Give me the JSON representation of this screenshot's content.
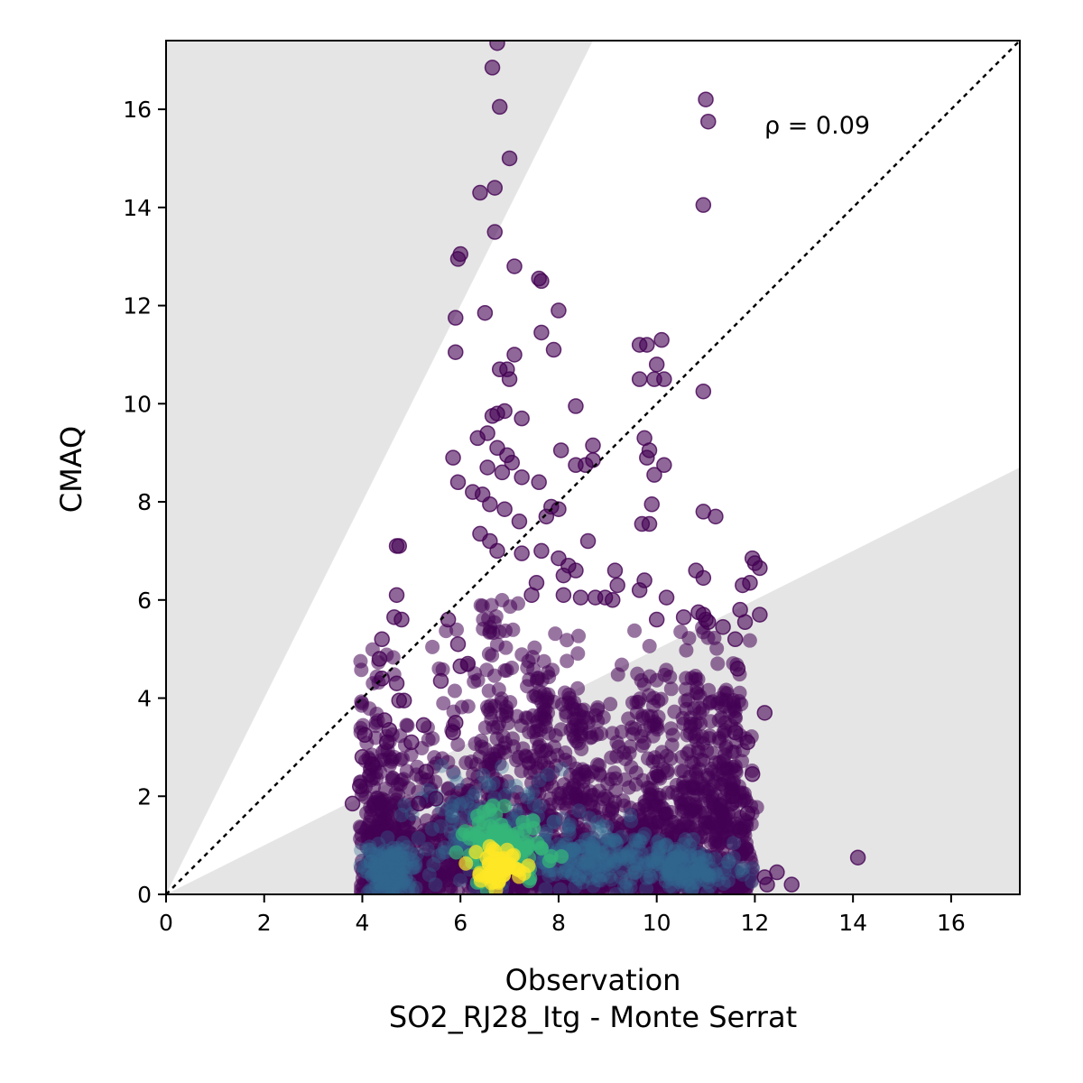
{
  "chart_data": {
    "type": "scatter",
    "xlabel": "Observation",
    "xlabel_sub": "SO2_RJ28_Itg - Monte Serrat",
    "ylabel": "CMAQ",
    "xlim": [
      0,
      17.4
    ],
    "ylim": [
      0,
      17.4
    ],
    "xticks": [
      0,
      2,
      4,
      6,
      8,
      10,
      12,
      14,
      16
    ],
    "yticks": [
      0,
      2,
      4,
      6,
      8,
      10,
      12,
      14,
      16
    ],
    "annotation": "ρ = 0.09",
    "grid": false,
    "one_to_one_line": true,
    "shaded_region": "outside factor-of-2 band (y < x/2 and y > 2x)",
    "colormap": "viridis (point density)",
    "colors": {
      "low_density": "#440154",
      "mid_density": "#31688e",
      "high_density": "#35b779",
      "peak_density": "#fde725",
      "shade": "#e5e5e5"
    },
    "points": [
      [
        6.75,
        17.35
      ],
      [
        6.65,
        16.85
      ],
      [
        6.8,
        16.05
      ],
      [
        7.0,
        15.0
      ],
      [
        6.7,
        14.4
      ],
      [
        6.4,
        14.3
      ],
      [
        6.7,
        13.5
      ],
      [
        5.95,
        12.95
      ],
      [
        6.0,
        13.05
      ],
      [
        7.1,
        12.8
      ],
      [
        7.6,
        12.55
      ],
      [
        7.65,
        12.5
      ],
      [
        5.9,
        11.75
      ],
      [
        6.5,
        11.85
      ],
      [
        8.0,
        11.9
      ],
      [
        7.65,
        11.45
      ],
      [
        5.9,
        11.05
      ],
      [
        7.1,
        11.0
      ],
      [
        7.9,
        11.1
      ],
      [
        6.8,
        10.7
      ],
      [
        6.95,
        10.7
      ],
      [
        7.0,
        10.5
      ],
      [
        8.35,
        9.95
      ],
      [
        6.65,
        9.75
      ],
      [
        6.75,
        9.8
      ],
      [
        6.9,
        9.85
      ],
      [
        7.25,
        9.7
      ],
      [
        6.35,
        9.3
      ],
      [
        6.55,
        9.4
      ],
      [
        6.75,
        9.1
      ],
      [
        6.95,
        8.95
      ],
      [
        7.05,
        8.8
      ],
      [
        5.85,
        8.9
      ],
      [
        6.55,
        8.7
      ],
      [
        6.85,
        8.6
      ],
      [
        7.25,
        8.5
      ],
      [
        7.6,
        8.4
      ],
      [
        5.95,
        8.4
      ],
      [
        6.25,
        8.2
      ],
      [
        6.45,
        8.15
      ],
      [
        6.6,
        7.95
      ],
      [
        6.9,
        7.85
      ],
      [
        7.2,
        7.6
      ],
      [
        7.85,
        7.9
      ],
      [
        8.0,
        7.85
      ],
      [
        7.75,
        7.7
      ],
      [
        8.05,
        9.05
      ],
      [
        8.35,
        8.75
      ],
      [
        8.55,
        8.75
      ],
      [
        8.7,
        9.15
      ],
      [
        8.7,
        8.85
      ],
      [
        9.75,
        9.3
      ],
      [
        9.85,
        9.05
      ],
      [
        9.8,
        8.9
      ],
      [
        9.95,
        8.55
      ],
      [
        10.15,
        8.75
      ],
      [
        9.9,
        7.95
      ],
      [
        9.7,
        7.55
      ],
      [
        9.85,
        7.55
      ],
      [
        6.4,
        7.35
      ],
      [
        6.6,
        7.2
      ],
      [
        6.75,
        7.0
      ],
      [
        7.25,
        6.95
      ],
      [
        7.65,
        7.0
      ],
      [
        8.0,
        6.85
      ],
      [
        8.2,
        6.7
      ],
      [
        8.35,
        6.6
      ],
      [
        8.6,
        7.2
      ],
      [
        8.1,
        6.5
      ],
      [
        7.55,
        6.35
      ],
      [
        7.45,
        6.1
      ],
      [
        8.1,
        6.1
      ],
      [
        8.45,
        6.05
      ],
      [
        8.75,
        6.05
      ],
      [
        8.95,
        6.05
      ],
      [
        9.15,
        6.6
      ],
      [
        9.2,
        6.3
      ],
      [
        9.1,
        6.0
      ],
      [
        9.75,
        6.4
      ],
      [
        9.65,
        6.2
      ],
      [
        10.2,
        6.05
      ],
      [
        10.55,
        5.65
      ],
      [
        10.0,
        5.6
      ],
      [
        10.8,
        6.6
      ],
      [
        10.95,
        6.45
      ],
      [
        10.85,
        5.75
      ],
      [
        10.95,
        5.7
      ],
      [
        11.0,
        5.6
      ],
      [
        11.05,
        5.55
      ],
      [
        11.35,
        5.45
      ],
      [
        11.75,
        6.3
      ],
      [
        11.9,
        6.35
      ],
      [
        11.95,
        6.85
      ],
      [
        12.0,
        6.75
      ],
      [
        12.1,
        6.65
      ],
      [
        11.7,
        5.8
      ],
      [
        11.8,
        5.55
      ],
      [
        12.1,
        5.7
      ],
      [
        11.6,
        5.2
      ],
      [
        12.2,
        3.7
      ],
      [
        11.65,
        4.6
      ],
      [
        10.95,
        7.8
      ],
      [
        11.2,
        7.7
      ],
      [
        9.65,
        11.2
      ],
      [
        9.8,
        11.2
      ],
      [
        10.1,
        11.3
      ],
      [
        9.65,
        10.5
      ],
      [
        9.95,
        10.5
      ],
      [
        10.0,
        10.8
      ],
      [
        10.15,
        10.5
      ],
      [
        10.95,
        10.25
      ],
      [
        11.0,
        16.2
      ],
      [
        11.05,
        15.75
      ],
      [
        10.95,
        14.05
      ],
      [
        4.7,
        7.1
      ],
      [
        4.75,
        7.1
      ],
      [
        4.7,
        6.1
      ],
      [
        4.65,
        5.65
      ],
      [
        4.8,
        5.6
      ],
      [
        4.4,
        5.2
      ],
      [
        4.35,
        4.8
      ],
      [
        4.4,
        4.4
      ],
      [
        4.7,
        4.3
      ],
      [
        4.75,
        3.95
      ],
      [
        4.85,
        3.95
      ],
      [
        4.05,
        3.25
      ],
      [
        4.45,
        3.55
      ],
      [
        4.55,
        3.35
      ],
      [
        4.0,
        2.8
      ],
      [
        4.2,
        2.65
      ],
      [
        3.95,
        2.2
      ],
      [
        3.8,
        1.85
      ],
      [
        4.5,
        3.1
      ],
      [
        5.0,
        3.1
      ],
      [
        5.25,
        3.45
      ],
      [
        5.3,
        2.5
      ],
      [
        5.5,
        1.95
      ],
      [
        5.15,
        1.85
      ],
      [
        5.75,
        5.6
      ],
      [
        5.6,
        4.35
      ],
      [
        6.0,
        4.65
      ],
      [
        5.95,
        5.1
      ],
      [
        6.15,
        4.7
      ],
      [
        5.9,
        3.5
      ],
      [
        5.85,
        3.3
      ],
      [
        12.2,
        0.35
      ],
      [
        12.45,
        0.45
      ],
      [
        12.75,
        0.2
      ],
      [
        12.25,
        0.2
      ],
      [
        14.1,
        0.75
      ],
      [
        11.95,
        2.45
      ],
      [
        11.85,
        3.1
      ],
      [
        11.6,
        3.3
      ],
      [
        11.55,
        2.0
      ],
      [
        11.85,
        1.65
      ],
      [
        11.7,
        1.3
      ]
    ],
    "density_clusters": [
      {
        "x": 6.75,
        "y": 0.6,
        "rx": 0.45,
        "ry": 0.35,
        "level": "peak"
      },
      {
        "x": 6.8,
        "y": 0.9,
        "rx": 0.9,
        "ry": 0.7,
        "level": "high"
      },
      {
        "x": 6.8,
        "y": 1.2,
        "rx": 1.6,
        "ry": 1.2,
        "level": "mid"
      },
      {
        "x": 4.6,
        "y": 0.5,
        "rx": 0.55,
        "ry": 0.55,
        "level": "mid"
      },
      {
        "x": 10.6,
        "y": 0.55,
        "rx": 1.0,
        "ry": 0.5,
        "level": "mid"
      },
      {
        "x": 8.8,
        "y": 0.8,
        "rx": 1.0,
        "ry": 0.6,
        "level": "mid"
      }
    ]
  }
}
